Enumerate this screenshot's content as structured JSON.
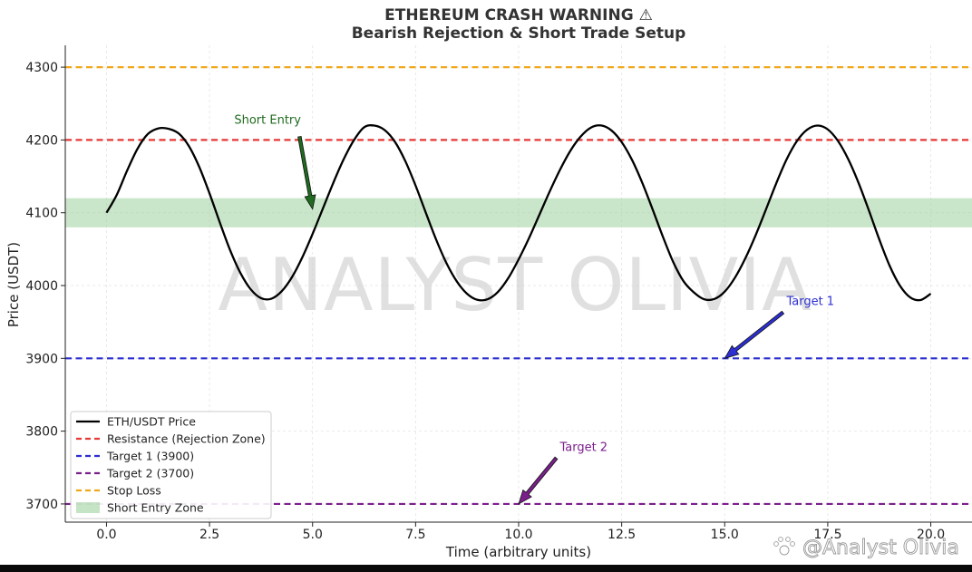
{
  "chart_data": {
    "type": "line",
    "title": "ETHEREUM CRASH WARNING ⚠",
    "subtitle": "Bearish Rejection & Short Trade Setup",
    "xlabel": "Time (arbitrary units)",
    "ylabel": "Price (USDT)",
    "xlim": [
      -1.0,
      21.0
    ],
    "ylim": [
      3675,
      4330
    ],
    "x_ticks": [
      0.0,
      2.5,
      5.0,
      7.5,
      10.0,
      12.5,
      15.0,
      17.5,
      20.0
    ],
    "x_tick_labels": [
      "0.0",
      "2.5",
      "5.0",
      "7.5",
      "10.0",
      "12.5",
      "15.0",
      "17.5",
      "20.0"
    ],
    "y_ticks": [
      3700,
      3800,
      3900,
      4000,
      4100,
      4200,
      4300
    ],
    "y_tick_labels": [
      "3700",
      "3800",
      "3900",
      "4000",
      "4100",
      "4200",
      "4300"
    ],
    "grid": true,
    "legend_position": "bottom-left",
    "series": [
      {
        "name": "ETH/USDT Price",
        "color": "#000000",
        "x": [
          0.0,
          0.25,
          0.5,
          0.75,
          1.0,
          1.25,
          1.5,
          1.75,
          2.0,
          2.25,
          2.5,
          2.75,
          3.0,
          3.25,
          3.5,
          3.75,
          4.0,
          4.25,
          4.5,
          4.75,
          5.0,
          5.25,
          5.5,
          5.75,
          6.0,
          6.25,
          6.5,
          6.75,
          7.0,
          7.25,
          7.5,
          7.75,
          8.0,
          8.25,
          8.5,
          8.75,
          9.0,
          9.25,
          9.5,
          9.75,
          10.0,
          10.25,
          10.5,
          10.75,
          11.0,
          11.25,
          11.5,
          11.75,
          12.0,
          12.25,
          12.5,
          12.75,
          13.0,
          13.25,
          13.5,
          13.75,
          14.0,
          14.25,
          14.5,
          14.75,
          15.0,
          15.25,
          15.5,
          15.75,
          16.0,
          16.25,
          16.5,
          16.75,
          17.0,
          17.25,
          17.5,
          17.75,
          18.0,
          18.25,
          18.5,
          18.75,
          19.0,
          19.25,
          19.5,
          19.75,
          20.0
        ],
        "y": [
          4100,
          4124.7,
          4157.9,
          4187.7,
          4208.0,
          4215.8,
          4215.5,
          4209.0,
          4191.5,
          4163.0,
          4126.5,
          4086.6,
          4048.5,
          4017.2,
          3994.8,
          3982.7,
          3981.9,
          3992.1,
          4011.5,
          4038.6,
          4070.9,
          4105.8,
          4140.7,
          4172.9,
          4199.4,
          4217.4,
          4219.8,
          4213.6,
          4197.3,
          4171.0,
          4137.3,
          4099.7,
          4062.9,
          4030.7,
          4005.7,
          3988.7,
          3980.4,
          3981.3,
          3991.4,
          4010.4,
          4036.0,
          4065.0,
          4096.8,
          4128.8,
          4158.6,
          4184.6,
          4204.4,
          4216.9,
          4219.9,
          4213.2,
          4197.1,
          4172.7,
          4141.1,
          4104.7,
          4067.1,
          4032.4,
          4006.0,
          3990.7,
          3981.2,
          3981.6,
          3991.7,
          4011.0,
          4037.4,
          4069.1,
          4104.4,
          4140.4,
          4173.1,
          4198.3,
          4214.1,
          4219.8,
          4214.5,
          4198.5,
          4173.3,
          4140.7,
          4102.9,
          4063.4,
          4027.4,
          4000.0,
          3983.7,
          3980.1,
          3988.9
        ]
      },
      {
        "name": "Resistance (Rejection Zone)",
        "color": "#e53935",
        "y": 4200
      },
      {
        "name": "Target 1 (3900)",
        "color": "#2c2fd1",
        "y": 3900
      },
      {
        "name": "Target 2 (3700)",
        "color": "#7b1f8c",
        "y": 3700
      },
      {
        "name": "Stop Loss",
        "color": "#f0a81a",
        "y": 4300
      },
      {
        "name": "Short Entry Zone",
        "color": "#9fd19f",
        "y_range": [
          4080,
          4120
        ]
      }
    ],
    "annotations": [
      {
        "text": "Short Entry",
        "color": "#1f6b1f",
        "text_at": [
          3.1,
          4222
        ],
        "arrow_to": [
          5.0,
          4105
        ]
      },
      {
        "text": "Target 1",
        "color": "#2c2fd1",
        "text_at": [
          16.5,
          3973
        ],
        "arrow_to": [
          15.0,
          3900
        ]
      },
      {
        "text": "Target 2",
        "color": "#7b1f8c",
        "text_at": [
          11.0,
          3773
        ],
        "arrow_to": [
          10.0,
          3700
        ]
      }
    ]
  },
  "watermark": "ANALYST OLIVIA",
  "corner_watermark": "@Analyst Olivia"
}
